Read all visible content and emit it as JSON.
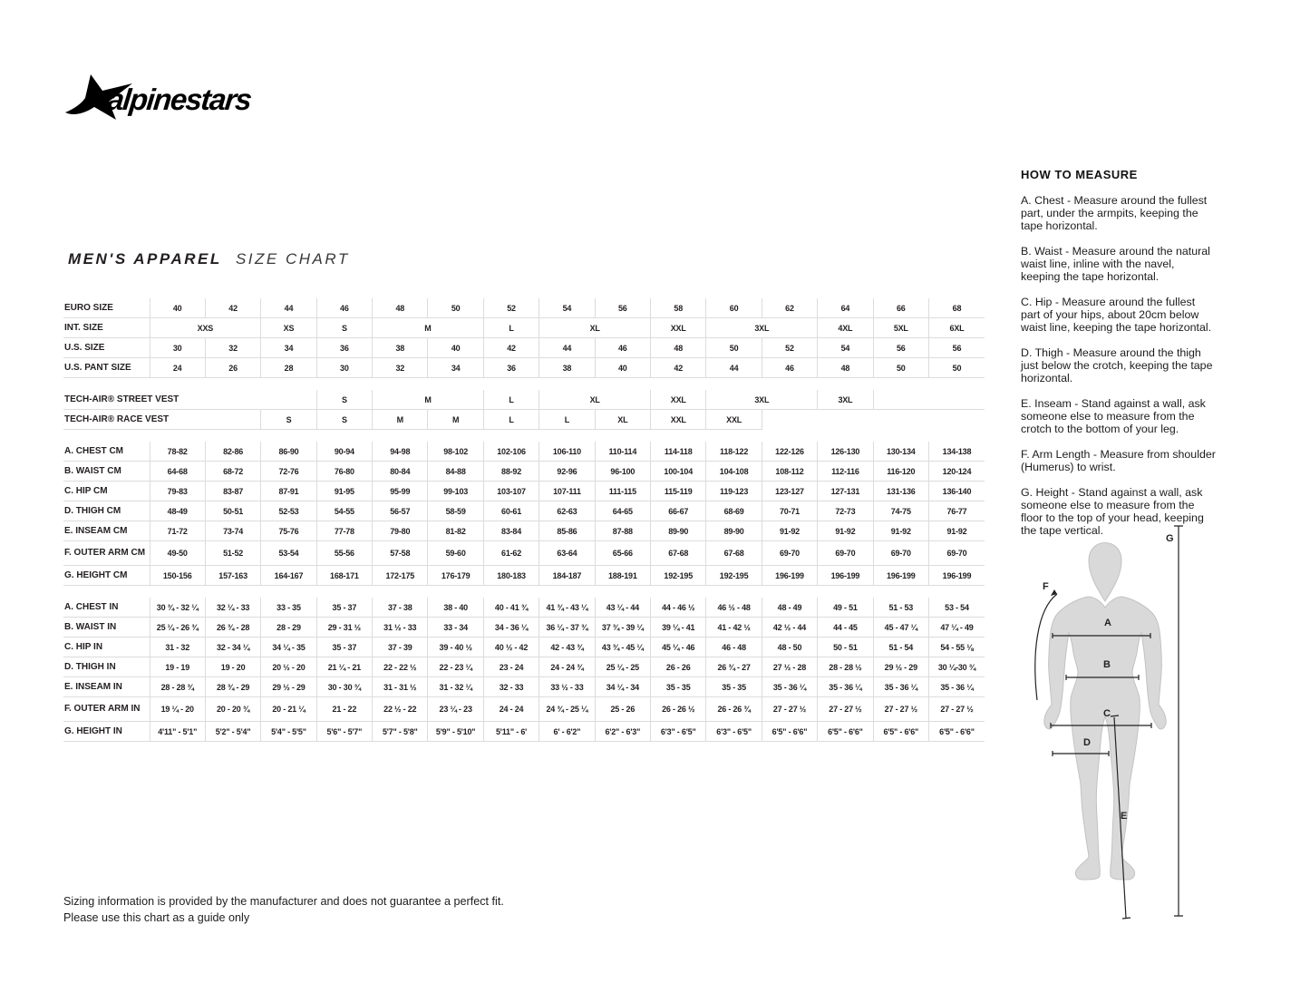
{
  "logo": {
    "brand": "alpinestars",
    "icon": "alpinestars-star"
  },
  "title": {
    "main": "MEN'S APPAREL",
    "sub": "SIZE CHART"
  },
  "colors": {
    "text": "#231f20",
    "grid": "#dcdcdc",
    "figure_fill": "#d9d9d9",
    "figure_stroke": "#c2c2c2"
  },
  "size_table": {
    "sections": [
      [
        {
          "label": "EURO SIZE",
          "cells": [
            {
              "t": "40"
            },
            {
              "t": "42"
            },
            {
              "t": "44"
            },
            {
              "t": "46"
            },
            {
              "t": "48"
            },
            {
              "t": "50"
            },
            {
              "t": "52"
            },
            {
              "t": "54"
            },
            {
              "t": "56"
            },
            {
              "t": "58"
            },
            {
              "t": "60"
            },
            {
              "t": "62"
            },
            {
              "t": "64"
            },
            {
              "t": "66"
            },
            {
              "t": "68"
            }
          ]
        },
        {
          "label": "INT. SIZE",
          "cells": [
            {
              "t": "XXS",
              "s": 2
            },
            {
              "t": "XS"
            },
            {
              "t": "S"
            },
            {
              "t": "M",
              "s": 2
            },
            {
              "t": "L"
            },
            {
              "t": "XL",
              "s": 2
            },
            {
              "t": "XXL"
            },
            {
              "t": "3XL",
              "s": 2
            },
            {
              "t": "4XL"
            },
            {
              "t": "5XL"
            },
            {
              "t": "6XL"
            }
          ]
        },
        {
          "label": "U.S. SIZE",
          "cells": [
            {
              "t": "30"
            },
            {
              "t": "32"
            },
            {
              "t": "34"
            },
            {
              "t": "36"
            },
            {
              "t": "38"
            },
            {
              "t": "40"
            },
            {
              "t": "42"
            },
            {
              "t": "44"
            },
            {
              "t": "46"
            },
            {
              "t": "48"
            },
            {
              "t": "50"
            },
            {
              "t": "52"
            },
            {
              "t": "54"
            },
            {
              "t": "56"
            },
            {
              "t": "56"
            }
          ]
        },
        {
          "label": "U.S. PANT SIZE",
          "cells": [
            {
              "t": "24"
            },
            {
              "t": "26"
            },
            {
              "t": "28"
            },
            {
              "t": "30"
            },
            {
              "t": "32"
            },
            {
              "t": "34"
            },
            {
              "t": "36"
            },
            {
              "t": "38"
            },
            {
              "t": "40"
            },
            {
              "t": "42"
            },
            {
              "t": "44"
            },
            {
              "t": "46"
            },
            {
              "t": "48"
            },
            {
              "t": "50"
            },
            {
              "t": "50"
            }
          ]
        }
      ],
      [
        {
          "label": "TECH-AIR® STREET VEST",
          "label_span": 4,
          "cells": [
            {
              "t": "S"
            },
            {
              "t": "M",
              "s": 2
            },
            {
              "t": "L"
            },
            {
              "t": "XL",
              "s": 2
            },
            {
              "t": "XXL"
            },
            {
              "t": "3XL",
              "s": 2
            },
            {
              "t": "3XL"
            },
            {
              "t": "",
              "s": 2
            }
          ]
        },
        {
          "label": "TECH-AIR® RACE VEST",
          "label_span": 3,
          "cells": [
            {
              "t": "S"
            },
            {
              "t": "S"
            },
            {
              "t": "M"
            },
            {
              "t": "M"
            },
            {
              "t": "L"
            },
            {
              "t": "L"
            },
            {
              "t": "XL"
            },
            {
              "t": "XXL"
            },
            {
              "t": "XXL"
            },
            {
              "t": "",
              "s": 4,
              "cls": "blank"
            }
          ]
        }
      ],
      [
        {
          "label": "A. CHEST CM",
          "cells": [
            {
              "t": "78-82"
            },
            {
              "t": "82-86"
            },
            {
              "t": "86-90"
            },
            {
              "t": "90-94"
            },
            {
              "t": "94-98"
            },
            {
              "t": "98-102"
            },
            {
              "t": "102-106"
            },
            {
              "t": "106-110"
            },
            {
              "t": "110-114"
            },
            {
              "t": "114-118"
            },
            {
              "t": "118-122"
            },
            {
              "t": "122-126"
            },
            {
              "t": "126-130"
            },
            {
              "t": "130-134"
            },
            {
              "t": "134-138"
            }
          ]
        },
        {
          "label": "B. WAIST CM",
          "cells": [
            {
              "t": "64-68"
            },
            {
              "t": "68-72"
            },
            {
              "t": "72-76"
            },
            {
              "t": "76-80"
            },
            {
              "t": "80-84"
            },
            {
              "t": "84-88"
            },
            {
              "t": "88-92"
            },
            {
              "t": "92-96"
            },
            {
              "t": "96-100"
            },
            {
              "t": "100-104"
            },
            {
              "t": "104-108"
            },
            {
              "t": "108-112"
            },
            {
              "t": "112-116"
            },
            {
              "t": "116-120"
            },
            {
              "t": "120-124"
            }
          ]
        },
        {
          "label": "C. HIP CM",
          "cells": [
            {
              "t": "79-83"
            },
            {
              "t": "83-87"
            },
            {
              "t": "87-91"
            },
            {
              "t": "91-95"
            },
            {
              "t": "95-99"
            },
            {
              "t": "99-103"
            },
            {
              "t": "103-107"
            },
            {
              "t": "107-111"
            },
            {
              "t": "111-115"
            },
            {
              "t": "115-119"
            },
            {
              "t": "119-123"
            },
            {
              "t": "123-127"
            },
            {
              "t": "127-131"
            },
            {
              "t": "131-136"
            },
            {
              "t": "136-140"
            }
          ]
        },
        {
          "label": "D. THIGH CM",
          "cells": [
            {
              "t": "48-49"
            },
            {
              "t": "50-51"
            },
            {
              "t": "52-53"
            },
            {
              "t": "54-55"
            },
            {
              "t": "56-57"
            },
            {
              "t": "58-59"
            },
            {
              "t": "60-61"
            },
            {
              "t": "62-63"
            },
            {
              "t": "64-65"
            },
            {
              "t": "66-67"
            },
            {
              "t": "68-69"
            },
            {
              "t": "70-71"
            },
            {
              "t": "72-73"
            },
            {
              "t": "74-75"
            },
            {
              "t": "76-77"
            }
          ]
        },
        {
          "label": "E. INSEAM CM",
          "cells": [
            {
              "t": "71-72"
            },
            {
              "t": "73-74"
            },
            {
              "t": "75-76"
            },
            {
              "t": "77-78"
            },
            {
              "t": "79-80"
            },
            {
              "t": "81-82"
            },
            {
              "t": "83-84"
            },
            {
              "t": "85-86"
            },
            {
              "t": "87-88"
            },
            {
              "t": "89-90"
            },
            {
              "t": "89-90"
            },
            {
              "t": "91-92"
            },
            {
              "t": "91-92"
            },
            {
              "t": "91-92"
            },
            {
              "t": "91-92"
            }
          ]
        },
        {
          "label": "F. OUTER ARM CM",
          "tall": true,
          "cells": [
            {
              "t": "49-50"
            },
            {
              "t": "51-52"
            },
            {
              "t": "53-54"
            },
            {
              "t": "55-56"
            },
            {
              "t": "57-58"
            },
            {
              "t": "59-60"
            },
            {
              "t": "61-62"
            },
            {
              "t": "63-64"
            },
            {
              "t": "65-66"
            },
            {
              "t": "67-68"
            },
            {
              "t": "67-68"
            },
            {
              "t": "69-70"
            },
            {
              "t": "69-70"
            },
            {
              "t": "69-70"
            },
            {
              "t": "69-70"
            }
          ]
        },
        {
          "label": "G. HEIGHT CM",
          "cells": [
            {
              "t": "150-156"
            },
            {
              "t": "157-163"
            },
            {
              "t": "164-167"
            },
            {
              "t": "168-171"
            },
            {
              "t": "172-175"
            },
            {
              "t": "176-179"
            },
            {
              "t": "180-183"
            },
            {
              "t": "184-187"
            },
            {
              "t": "188-191"
            },
            {
              "t": "192-195"
            },
            {
              "t": "192-195"
            },
            {
              "t": "196-199"
            },
            {
              "t": "196-199"
            },
            {
              "t": "196-199"
            },
            {
              "t": "196-199"
            }
          ]
        }
      ],
      [
        {
          "label": "A. CHEST IN",
          "cells": [
            {
              "t": "30 ¾ - 32 ¼"
            },
            {
              "t": "32 ¼ - 33"
            },
            {
              "t": "33 - 35"
            },
            {
              "t": "35 - 37"
            },
            {
              "t": "37 - 38"
            },
            {
              "t": "38 - 40"
            },
            {
              "t": "40 - 41 ¾"
            },
            {
              "t": "41 ¾ - 43 ¼"
            },
            {
              "t": "43 ¼ - 44"
            },
            {
              "t": "44 - 46 ½"
            },
            {
              "t": "46 ½ - 48"
            },
            {
              "t": "48 - 49"
            },
            {
              "t": "49 - 51"
            },
            {
              "t": "51 - 53"
            },
            {
              "t": "53 - 54"
            }
          ]
        },
        {
          "label": "B. WAIST IN",
          "cells": [
            {
              "t": "25 ¼ - 26 ¾"
            },
            {
              "t": "26 ¾ - 28"
            },
            {
              "t": "28 - 29"
            },
            {
              "t": "29 - 31 ½"
            },
            {
              "t": "31 ½ - 33"
            },
            {
              "t": "33 - 34"
            },
            {
              "t": "34 - 36 ¼"
            },
            {
              "t": "36 ¼ - 37 ¾"
            },
            {
              "t": "37 ¾ - 39 ¼"
            },
            {
              "t": "39 ¼ - 41"
            },
            {
              "t": "41 - 42 ½"
            },
            {
              "t": "42 ½ - 44"
            },
            {
              "t": "44 - 45"
            },
            {
              "t": "45 - 47 ¼"
            },
            {
              "t": "47 ¼ - 49"
            }
          ]
        },
        {
          "label": "C. HIP IN",
          "cells": [
            {
              "t": "31 - 32"
            },
            {
              "t": "32 - 34 ¼"
            },
            {
              "t": "34 ¼ - 35"
            },
            {
              "t": "35 - 37"
            },
            {
              "t": "37 - 39"
            },
            {
              "t": "39 - 40 ½"
            },
            {
              "t": "40 ½ - 42"
            },
            {
              "t": "42 - 43 ¾"
            },
            {
              "t": "43 ¾ - 45 ¼"
            },
            {
              "t": "45 ¼ - 46"
            },
            {
              "t": "46 - 48"
            },
            {
              "t": "48 - 50"
            },
            {
              "t": "50 - 51"
            },
            {
              "t": "51 - 54"
            },
            {
              "t": "54 - 55 ⅛"
            }
          ]
        },
        {
          "label": "D. THIGH IN",
          "cells": [
            {
              "t": "19 - 19"
            },
            {
              "t": "19 - 20"
            },
            {
              "t": "20 ½ - 20"
            },
            {
              "t": "21 ¼ - 21"
            },
            {
              "t": "22 - 22 ½"
            },
            {
              "t": "22 - 23 ¼"
            },
            {
              "t": "23 - 24"
            },
            {
              "t": "24 - 24 ¾"
            },
            {
              "t": "25 ¼ - 25"
            },
            {
              "t": "26 - 26"
            },
            {
              "t": "26 ¾ - 27"
            },
            {
              "t": "27 ½ - 28"
            },
            {
              "t": "28 - 28 ½"
            },
            {
              "t": "29 ½ - 29"
            },
            {
              "t": "30 ¼-30 ¾"
            }
          ]
        },
        {
          "label": "E. INSEAM IN",
          "cells": [
            {
              "t": "28 - 28 ¾"
            },
            {
              "t": "28 ¾ - 29"
            },
            {
              "t": "29 ½ - 29"
            },
            {
              "t": "30 - 30 ¾"
            },
            {
              "t": "31 - 31 ½"
            },
            {
              "t": "31 - 32 ¼"
            },
            {
              "t": "32 - 33"
            },
            {
              "t": "33 ½ - 33"
            },
            {
              "t": "34 ¼ - 34"
            },
            {
              "t": "35 - 35"
            },
            {
              "t": "35 - 35"
            },
            {
              "t": "35 - 36 ¼"
            },
            {
              "t": "35 - 36 ¼"
            },
            {
              "t": "35 - 36 ¼"
            },
            {
              "t": "35 - 36 ¼"
            }
          ]
        },
        {
          "label": "F. OUTER ARM IN",
          "tall": true,
          "cells": [
            {
              "t": "19 ¼ - 20"
            },
            {
              "t": "20 - 20 ¾"
            },
            {
              "t": "20 - 21 ¼"
            },
            {
              "t": "21 - 22"
            },
            {
              "t": "22 ½ - 22"
            },
            {
              "t": "23 ¼ - 23"
            },
            {
              "t": "24 - 24"
            },
            {
              "t": "24 ¾ - 25 ¼"
            },
            {
              "t": "25 - 26"
            },
            {
              "t": "26 - 26 ½"
            },
            {
              "t": "26 - 26 ¾"
            },
            {
              "t": "27 - 27 ½"
            },
            {
              "t": "27 - 27 ½"
            },
            {
              "t": "27 - 27 ½"
            },
            {
              "t": "27 - 27 ½"
            }
          ]
        },
        {
          "label": "G. HEIGHT IN",
          "cells": [
            {
              "t": "4'11\" - 5'1\""
            },
            {
              "t": "5'2\" - 5'4\""
            },
            {
              "t": "5'4\" - 5'5\""
            },
            {
              "t": "5'6\" - 5'7\""
            },
            {
              "t": "5'7\" - 5'8\""
            },
            {
              "t": "5'9\" - 5'10\""
            },
            {
              "t": "5'11\" - 6'"
            },
            {
              "t": "6' - 6'2\""
            },
            {
              "t": "6'2\" - 6'3\""
            },
            {
              "t": "6'3\" - 6'5\""
            },
            {
              "t": "6'3\" - 6'5\""
            },
            {
              "t": "6'5\" - 6'6\""
            },
            {
              "t": "6'5\" - 6'6\""
            },
            {
              "t": "6'5\" - 6'6\""
            },
            {
              "t": "6'5\" - 6'6\""
            }
          ]
        }
      ]
    ]
  },
  "how_to_measure": {
    "heading": "HOW TO MEASURE",
    "paragraphs": [
      "A. Chest - Measure around the fullest part, under the armpits, keeping the tape horizontal.",
      "B. Waist - Measure around the natural waist line, inline with the navel, keeping the tape horizontal.",
      "C. Hip - Measure around the fullest part of your hips, about 20cm below waist line, keeping the tape horizontal.",
      "D. Thigh - Measure around the thigh just below the crotch, keeping the tape horizontal.",
      "E. Inseam - Stand against a wall, ask someone else to measure from the crotch to the bottom of your leg.",
      "F. Arm Length - Measure from shoulder (Humerus) to wrist.",
      "G. Height - Stand against a wall, ask someone else to measure from the floor to the top of your head, keeping the tape vertical."
    ]
  },
  "figure": {
    "labels": {
      "A": "A",
      "B": "B",
      "C": "C",
      "D": "D",
      "E": "E",
      "F": "F",
      "G": "G"
    }
  },
  "disclaimer": {
    "line1": "Sizing information is provided by the manufacturer and does not guarantee a perfect fit.",
    "line2": "Please use this chart as a guide only"
  }
}
